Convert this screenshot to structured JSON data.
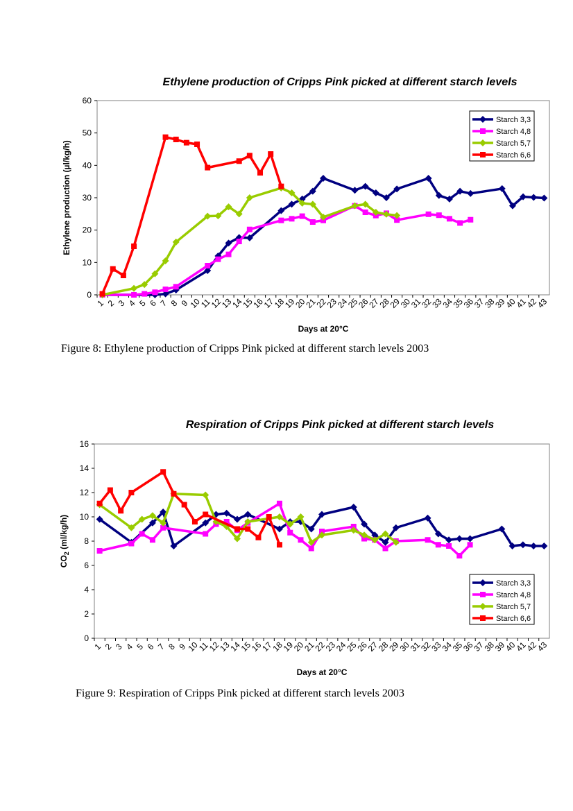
{
  "figures": [
    {
      "caption": "Figure 8: Ethylene production of Cripps Pink picked at different starch levels 2003"
    },
    {
      "caption": "Figure 9: Respiration of Cripps Pink picked at different starch levels 2003"
    }
  ],
  "chart_data": [
    {
      "type": "line",
      "title": "Ethylene production of Cripps Pink picked at different starch levels",
      "xlabel": "Days at 20°C",
      "ylabel": "Ethylene production (µl/kg/h)",
      "x_categories": [
        "1",
        "2",
        "3",
        "4",
        "5",
        "6",
        "7",
        "8",
        "9",
        "10",
        "11",
        "12",
        "13",
        "14",
        "15",
        "16",
        "17",
        "18",
        "19",
        "20",
        "21",
        "22",
        "23",
        "24",
        "25",
        "26",
        "27",
        "28",
        "29",
        "30",
        "31",
        "32",
        "33",
        "34",
        "35",
        "36",
        "37",
        "38",
        "39",
        "40",
        "41",
        "42",
        "43"
      ],
      "ylim": [
        0,
        60
      ],
      "yticks": [
        0,
        10,
        20,
        30,
        40,
        50,
        60
      ],
      "legend_position": "top-right",
      "series": [
        {
          "name": "Starch 3,3",
          "color": "#000080",
          "marker": "diamond",
          "points": [
            [
              1,
              0
            ],
            [
              6,
              0
            ],
            [
              7,
              0.3
            ],
            [
              8,
              1.5
            ],
            [
              11,
              7.5
            ],
            [
              12,
              12
            ],
            [
              13,
              16
            ],
            [
              14,
              17.7
            ],
            [
              15,
              17.6
            ],
            [
              18,
              26
            ],
            [
              19,
              28
            ],
            [
              20,
              29.6
            ],
            [
              21,
              32
            ],
            [
              22,
              36
            ],
            [
              25,
              32.3
            ],
            [
              26,
              33.5
            ],
            [
              27,
              31.5
            ],
            [
              28,
              30
            ],
            [
              29,
              32.7
            ],
            [
              32,
              36
            ],
            [
              33,
              30.7
            ],
            [
              34,
              29.6
            ],
            [
              35,
              32
            ],
            [
              36,
              31.3
            ],
            [
              39,
              32.8
            ],
            [
              40,
              27.5
            ],
            [
              41,
              30.3
            ],
            [
              42,
              30.1
            ],
            [
              43,
              29.9
            ]
          ]
        },
        {
          "name": "Starch 4,8",
          "color": "#ff00ff",
          "marker": "square",
          "points": [
            [
              1,
              0
            ],
            [
              4,
              0
            ],
            [
              5,
              0.3
            ],
            [
              6,
              0.8
            ],
            [
              7,
              1.7
            ],
            [
              8,
              2.5
            ],
            [
              11,
              9
            ],
            [
              12,
              11
            ],
            [
              13,
              12.5
            ],
            [
              14,
              16.5
            ],
            [
              15,
              20.2
            ],
            [
              18,
              23
            ],
            [
              19,
              23.5
            ],
            [
              20,
              24.3
            ],
            [
              21,
              22.5
            ],
            [
              22,
              23
            ],
            [
              25,
              27.5
            ],
            [
              26,
              25.5
            ],
            [
              27,
              24.5
            ],
            [
              28,
              25.2
            ],
            [
              29,
              23.1
            ],
            [
              32,
              24.9
            ],
            [
              33,
              24.6
            ],
            [
              34,
              23.5
            ],
            [
              35,
              22.2
            ],
            [
              36,
              23.2
            ]
          ]
        },
        {
          "name": "Starch 5,7",
          "color": "#99cc00",
          "marker": "diamond",
          "points": [
            [
              1,
              0
            ],
            [
              4,
              2
            ],
            [
              5,
              3.2
            ],
            [
              6,
              6.5
            ],
            [
              7,
              10.5
            ],
            [
              8,
              16.3
            ],
            [
              11,
              24.3
            ],
            [
              12,
              24.4
            ],
            [
              13,
              27.2
            ],
            [
              14,
              25
            ],
            [
              15,
              30
            ],
            [
              18,
              33
            ],
            [
              19,
              31.5
            ],
            [
              20,
              28.3
            ],
            [
              21,
              28
            ],
            [
              22,
              24
            ],
            [
              25,
              27.5
            ],
            [
              26,
              28
            ],
            [
              27,
              25.5
            ],
            [
              28,
              24.9
            ],
            [
              29,
              24.5
            ]
          ]
        },
        {
          "name": "Starch 6,6",
          "color": "#ff0000",
          "marker": "square",
          "points": [
            [
              1,
              0.3
            ],
            [
              2,
              8
            ],
            [
              3,
              6
            ],
            [
              4,
              15
            ],
            [
              7,
              48.7
            ],
            [
              8,
              48
            ],
            [
              9,
              47
            ],
            [
              10,
              46.5
            ],
            [
              11,
              39.3
            ],
            [
              14,
              41.3
            ],
            [
              15,
              43
            ],
            [
              16,
              37.7
            ],
            [
              17,
              43.5
            ],
            [
              18,
              33.5
            ]
          ]
        }
      ]
    },
    {
      "type": "line",
      "title": "Respiration of Cripps Pink picked at different starch levels",
      "xlabel": "Days at 20°C",
      "ylabel_main": "CO",
      "ylabel_sub": "2",
      "ylabel_rest": " (ml/kg/h)",
      "x_categories": [
        "1",
        "2",
        "3",
        "4",
        "5",
        "6",
        "7",
        "8",
        "9",
        "10",
        "11",
        "12",
        "13",
        "14",
        "15",
        "16",
        "17",
        "18",
        "19",
        "20",
        "21",
        "22",
        "23",
        "24",
        "25",
        "26",
        "27",
        "28",
        "29",
        "30",
        "31",
        "32",
        "33",
        "34",
        "35",
        "36",
        "37",
        "38",
        "39",
        "40",
        "41",
        "42",
        "43"
      ],
      "ylim": [
        0,
        16
      ],
      "yticks": [
        0,
        2,
        4,
        6,
        8,
        10,
        12,
        14,
        16
      ],
      "legend_position": "bottom-right",
      "series": [
        {
          "name": "Starch 3,3",
          "color": "#000080",
          "marker": "diamond",
          "points": [
            [
              1,
              9.8
            ],
            [
              4,
              7.9
            ],
            [
              6,
              9.5
            ],
            [
              7,
              10.4
            ],
            [
              8,
              7.6
            ],
            [
              11,
              9.5
            ],
            [
              12,
              10.2
            ],
            [
              13,
              10.3
            ],
            [
              14,
              9.8
            ],
            [
              15,
              10.2
            ],
            [
              18,
              9
            ],
            [
              19,
              9.6
            ],
            [
              20,
              9.6
            ],
            [
              21,
              9
            ],
            [
              22,
              10.2
            ],
            [
              25,
              10.8
            ],
            [
              26,
              9.4
            ],
            [
              27,
              8.5
            ],
            [
              28,
              7.9
            ],
            [
              29,
              9.1
            ],
            [
              32,
              9.9
            ],
            [
              33,
              8.6
            ],
            [
              34,
              8.1
            ],
            [
              35,
              8.2
            ],
            [
              36,
              8.2
            ],
            [
              39,
              9
            ],
            [
              40,
              7.6
            ],
            [
              41,
              7.7
            ],
            [
              42,
              7.6
            ],
            [
              43,
              7.6
            ]
          ]
        },
        {
          "name": "Starch 4,8",
          "color": "#ff00ff",
          "marker": "square",
          "points": [
            [
              1,
              7.2
            ],
            [
              4,
              7.8
            ],
            [
              5,
              8.6
            ],
            [
              6,
              8.1
            ],
            [
              7,
              9.1
            ],
            [
              11,
              8.6
            ],
            [
              12,
              9.4
            ],
            [
              13,
              9.6
            ],
            [
              14,
              8.9
            ],
            [
              15,
              9.5
            ],
            [
              18,
              11.1
            ],
            [
              19,
              8.7
            ],
            [
              20,
              8.1
            ],
            [
              21,
              7.4
            ],
            [
              22,
              8.8
            ],
            [
              25,
              9.2
            ],
            [
              26,
              8.2
            ],
            [
              27,
              8.1
            ],
            [
              28,
              7.4
            ],
            [
              29,
              8
            ],
            [
              32,
              8.1
            ],
            [
              33,
              7.7
            ],
            [
              34,
              7.6
            ],
            [
              35,
              6.8
            ],
            [
              36,
              7.7
            ]
          ]
        },
        {
          "name": "Starch 5,7",
          "color": "#99cc00",
          "marker": "diamond",
          "points": [
            [
              1,
              11
            ],
            [
              4,
              9.1
            ],
            [
              5,
              9.8
            ],
            [
              6,
              10.1
            ],
            [
              7,
              9.5
            ],
            [
              8,
              11.9
            ],
            [
              11,
              11.8
            ],
            [
              12,
              9.6
            ],
            [
              13,
              9.2
            ],
            [
              14,
              8.2
            ],
            [
              15,
              9.6
            ],
            [
              18,
              10
            ],
            [
              19,
              9.4
            ],
            [
              20,
              10
            ],
            [
              21,
              7.9
            ],
            [
              22,
              8.5
            ],
            [
              25,
              8.9
            ],
            [
              26,
              8.5
            ],
            [
              27,
              8.1
            ],
            [
              28,
              8.6
            ],
            [
              29,
              7.9
            ]
          ]
        },
        {
          "name": "Starch 6,6",
          "color": "#ff0000",
          "marker": "square",
          "points": [
            [
              1,
              11.1
            ],
            [
              2,
              12.2
            ],
            [
              3,
              10.5
            ],
            [
              4,
              12
            ],
            [
              7,
              13.7
            ],
            [
              8,
              11.9
            ],
            [
              9,
              11
            ],
            [
              10,
              9.6
            ],
            [
              11,
              10.2
            ],
            [
              14,
              9
            ],
            [
              15,
              9
            ],
            [
              16,
              8.3
            ],
            [
              17,
              10
            ],
            [
              18,
              7.7
            ]
          ]
        }
      ]
    }
  ]
}
